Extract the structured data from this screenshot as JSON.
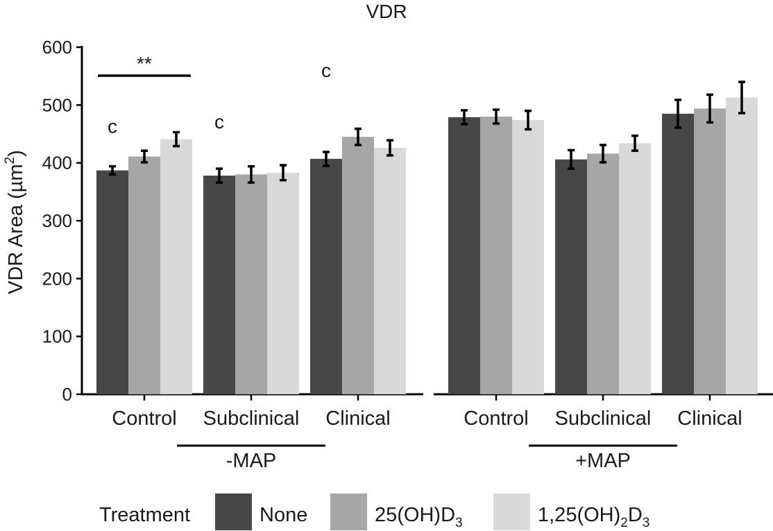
{
  "chart_data": {
    "type": "bar",
    "title": "VDR",
    "ylabel": "VDR Area (µm",
    "ylabel_sup": "2",
    "ylabel_close": ")",
    "ylim": [
      0,
      600
    ],
    "yticks": [
      "0",
      "100",
      "200",
      "300",
      "400",
      "500",
      "600"
    ],
    "legend_title": "Treatment",
    "colors": [
      "#474747",
      "#a6a6a6",
      "#d9d9d9"
    ],
    "panels": [
      {
        "group_label": "-MAP",
        "categories": [
          "Control",
          "Subclinical",
          "Clinical"
        ],
        "series": [
          {
            "name": "None",
            "values": [
              387,
              378,
              407
            ],
            "errors": [
              7,
              12,
              12
            ]
          },
          {
            "name": "25(OH)D3",
            "values": [
              411,
              380,
              445
            ],
            "errors": [
              10,
              14,
              14
            ]
          },
          {
            "name": "1,25(OH)2D3",
            "values": [
              441,
              383,
              426
            ],
            "errors": [
              12,
              13,
              13
            ]
          }
        ],
        "letters": [
          "c",
          "c",
          "c"
        ],
        "significance": {
          "label": "**",
          "category_index": 0,
          "from_series": 0,
          "to_series": 2
        }
      },
      {
        "group_label": "+MAP",
        "categories": [
          "Control",
          "Subclinical",
          "Clinical"
        ],
        "series": [
          {
            "name": "None",
            "values": [
              479,
              406,
              485
            ],
            "errors": [
              12,
              16,
              24
            ]
          },
          {
            "name": "25(OH)D3",
            "values": [
              480,
              416,
              494
            ],
            "errors": [
              12,
              15,
              24
            ]
          },
          {
            "name": "1,25(OH)2D3",
            "values": [
              474,
              434,
              513
            ],
            "errors": [
              16,
              13,
              27
            ]
          }
        ],
        "letters": [
          "",
          "",
          ""
        ]
      }
    ],
    "legend": [
      {
        "base": "None",
        "parts": []
      },
      {
        "base": "25(OH)D",
        "parts": [
          {
            "sub": "3",
            "text": ""
          }
        ]
      },
      {
        "base": "1,25(OH)",
        "parts": [
          {
            "sub": "2",
            "text": "D"
          },
          {
            "sub": "3",
            "text": ""
          }
        ]
      }
    ]
  }
}
